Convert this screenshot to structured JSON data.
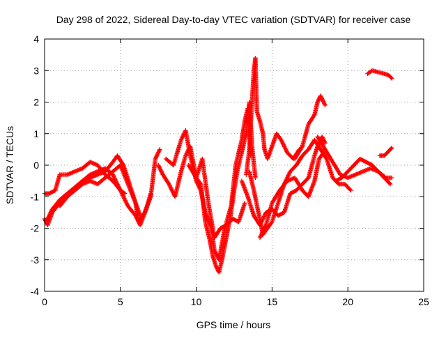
{
  "chart_data": {
    "type": "scatter",
    "title": "Day 298 of 2022, Sidereal Day-to-day VTEC variation (SDTVAR) for receiver case",
    "xlabel": "GPS time / hours",
    "ylabel": "SDTVAR / TECUs",
    "xlim": [
      0,
      25
    ],
    "ylim": [
      -4,
      4
    ],
    "x_ticks": [
      "0",
      "5",
      "10",
      "15",
      "20",
      "25"
    ],
    "y_ticks": [
      "-4",
      "-3",
      "-2",
      "-1",
      "0",
      "1",
      "2",
      "3",
      "4"
    ],
    "grid": true,
    "marker": "+",
    "marker_color": "#ff0000",
    "series": [
      {
        "x": [
          0.0,
          0.2,
          0.5,
          1.0,
          1.5,
          2.0,
          2.5,
          3.0,
          3.5,
          4.0,
          4.5,
          4.8,
          5.2,
          5.6,
          6.0,
          6.2,
          6.6,
          7.0,
          7.3,
          7.6
        ],
        "y": [
          -1.7,
          -1.9,
          -1.5,
          -1.2,
          -0.9,
          -0.7,
          -0.5,
          -0.4,
          -0.3,
          -0.2,
          0.1,
          0.3,
          0.0,
          -0.6,
          -1.2,
          -1.8,
          -1.5,
          -1.0,
          0.2,
          0.5
        ]
      },
      {
        "x": [
          0.1,
          0.5,
          1.0,
          1.5,
          2.0,
          2.5,
          3.0,
          3.5,
          4.0,
          4.5,
          5.0,
          5.5,
          6.0,
          6.3,
          6.7,
          7.0
        ],
        "y": [
          -1.8,
          -1.4,
          -1.1,
          -0.9,
          -0.7,
          -0.5,
          -0.3,
          -0.2,
          -0.1,
          -0.3,
          -0.8,
          -1.3,
          -1.6,
          -1.9,
          -1.4,
          -0.9
        ]
      },
      {
        "x": [
          0.0,
          0.3,
          0.7,
          1.0,
          1.5,
          2.0,
          2.5,
          3.0,
          3.5,
          4.0,
          4.5,
          5.0,
          5.3
        ],
        "y": [
          -0.9,
          -0.9,
          -0.8,
          -0.3,
          -0.3,
          -0.2,
          -0.1,
          0.1,
          0.0,
          -0.3,
          -0.5,
          -0.8,
          -0.9
        ]
      },
      {
        "x": [
          1.0,
          1.5,
          2.0,
          2.5,
          3.0,
          3.5,
          4.0,
          4.5,
          5.0,
          5.5,
          6.0,
          6.3
        ],
        "y": [
          -1.3,
          -1.0,
          -0.8,
          -0.6,
          -0.5,
          -0.6,
          -0.4,
          -0.2,
          0.0,
          -0.6,
          -1.2,
          -1.6
        ]
      },
      {
        "x": [
          7.5,
          7.8,
          8.2,
          8.6,
          9.0,
          9.3,
          9.6,
          10.0,
          10.3,
          10.6,
          10.9,
          11.1,
          11.3,
          11.5,
          11.7,
          11.9,
          12.1,
          12.3,
          12.5,
          12.7,
          13.0,
          13.3,
          13.5,
          13.7,
          13.9
        ],
        "y": [
          0.0,
          -0.3,
          -0.6,
          -1.0,
          -0.2,
          0.3,
          0.6,
          -0.4,
          -0.6,
          -1.8,
          -2.4,
          -2.9,
          -3.2,
          -3.4,
          -3.0,
          -2.5,
          -2.0,
          -1.5,
          -0.8,
          -0.2,
          0.4,
          1.0,
          2.0,
          0.5,
          -0.4
        ]
      },
      {
        "x": [
          8.0,
          8.5,
          9.0,
          9.3,
          9.6,
          10.0,
          10.3,
          10.6,
          11.0,
          11.2,
          11.5,
          11.8,
          12.0,
          12.3,
          12.6,
          13.0,
          13.2,
          13.4,
          13.6
        ],
        "y": [
          0.2,
          0.0,
          0.8,
          1.1,
          0.3,
          -0.5,
          -0.8,
          -1.5,
          -2.0,
          -2.7,
          -3.0,
          -2.2,
          -1.8,
          -1.3,
          0.0,
          0.8,
          1.4,
          1.8,
          0.3
        ]
      },
      {
        "x": [
          9.5,
          10.0,
          10.4,
          10.8,
          11.2,
          11.6,
          12.0,
          12.4,
          12.8,
          13.2
        ],
        "y": [
          0.0,
          -0.4,
          0.2,
          -1.2,
          -2.3,
          -2.0,
          -1.9,
          -1.7,
          -1.8,
          -1.2
        ]
      },
      {
        "x": [
          13.3,
          13.5,
          13.7,
          13.8,
          13.9,
          14.0,
          14.2,
          14.4,
          14.5,
          14.7,
          15.0,
          15.3,
          15.6,
          16.0,
          16.4,
          16.8
        ],
        "y": [
          -0.3,
          0.5,
          2.2,
          3.0,
          3.4,
          1.7,
          1.4,
          1.0,
          0.5,
          0.2,
          0.6,
          1.0,
          0.8,
          0.4,
          0.2,
          0.5
        ]
      },
      {
        "x": [
          13.5,
          13.8,
          14.1,
          14.4,
          14.7,
          15.0,
          15.4,
          15.8,
          16.2,
          16.6,
          17.0,
          17.4,
          17.8,
          18.2,
          18.6,
          19.0,
          19.4,
          19.8,
          20.2
        ],
        "y": [
          -0.2,
          -0.8,
          -1.5,
          -2.2,
          -2.0,
          -1.8,
          -1.2,
          -0.6,
          -0.2,
          0.0,
          0.3,
          0.5,
          0.8,
          0.5,
          0.2,
          -0.4,
          -0.6,
          -0.6,
          -0.8
        ]
      },
      {
        "x": [
          13.0,
          13.4,
          13.8,
          14.2,
          14.6,
          15.0,
          15.4,
          15.8,
          16.2,
          16.6,
          17.0,
          17.4,
          17.8,
          18.0,
          18.3,
          18.5
        ],
        "y": [
          -0.5,
          -1.0,
          -1.6,
          -1.9,
          -1.5,
          -1.4,
          -1.6,
          -1.5,
          -0.9,
          -0.8,
          -0.6,
          -0.4,
          0.3,
          0.6,
          0.9,
          0.7
        ]
      },
      {
        "x": [
          14.2,
          14.6,
          15.0,
          15.5,
          16.0,
          16.5,
          17.0,
          17.4,
          17.8,
          18.1,
          18.4
        ],
        "y": [
          -2.3,
          -1.9,
          -1.2,
          -0.8,
          -0.5,
          -0.4,
          -0.8,
          -1.0,
          -0.5,
          0.2,
          0.4
        ]
      },
      {
        "x": [
          16.5,
          17.0,
          17.4,
          17.8,
          18.0,
          18.2,
          18.5
        ],
        "y": [
          0.2,
          0.6,
          1.3,
          1.6,
          2.0,
          2.2,
          1.9
        ]
      },
      {
        "x": [
          18.0,
          18.5,
          19.0,
          19.5,
          20.0,
          20.5,
          21.0,
          21.5,
          22.0,
          22.5,
          22.9
        ],
        "y": [
          0.9,
          0.5,
          0.1,
          -0.3,
          -0.4,
          -0.3,
          -0.2,
          -0.1,
          -0.2,
          -0.4,
          -0.4
        ]
      },
      {
        "x": [
          19.2,
          19.6,
          20.0,
          20.4,
          20.8,
          21.2,
          21.6,
          22.0,
          22.4,
          22.8
        ],
        "y": [
          -0.5,
          -0.4,
          -0.2,
          0.0,
          0.2,
          0.1,
          0.0,
          -0.2,
          -0.4,
          -0.6
        ]
      },
      {
        "x": [
          21.3,
          21.6,
          22.0,
          22.4,
          22.7,
          22.9
        ],
        "y": [
          2.9,
          3.0,
          2.95,
          2.9,
          2.85,
          2.75
        ]
      },
      {
        "x": [
          22.1,
          22.4,
          22.7,
          22.9
        ],
        "y": [
          0.3,
          0.3,
          0.45,
          0.55
        ]
      }
    ]
  }
}
